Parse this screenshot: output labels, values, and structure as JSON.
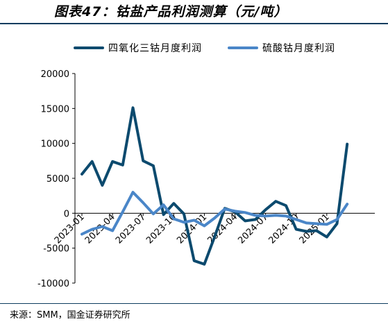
{
  "title": "图表47：钴盐产品利润测算（元/吨）",
  "source": "来源：SMM，国金证券研究所",
  "colors": {
    "series1": "#0c4a6e",
    "series2": "#4a86c8",
    "axis": "#000000",
    "rule": "#0c3c5e"
  },
  "chart_data": {
    "type": "line",
    "x_labels": [
      "2023-01",
      "2023-04",
      "2023-07",
      "2023-10",
      "2024-01",
      "2024-04",
      "2024-07",
      "2024-10",
      "2025-01"
    ],
    "ylim": [
      -10000,
      20000
    ],
    "yticks": [
      20000,
      15000,
      10000,
      5000,
      0,
      -5000,
      -10000
    ],
    "legend_position": "top",
    "grid": false,
    "series": [
      {
        "name": "四氧化三钴月度利润",
        "color": "#0c4a6e",
        "values": [
          5600,
          7400,
          4000,
          7400,
          6900,
          15100,
          7500,
          6800,
          -200,
          1400,
          -100,
          -6800,
          -7300,
          -3400,
          700,
          200,
          -1100,
          -900,
          500,
          1700,
          1100,
          -2300,
          -2600,
          -2500,
          -3400,
          -1500,
          9900
        ]
      },
      {
        "name": "硫酸钴月度利润",
        "color": "#4a86c8",
        "values": [
          -3000,
          -2300,
          -1900,
          -2500,
          200,
          3000,
          1500,
          -100,
          1200,
          -800,
          -1300,
          -1000,
          -1800,
          -700,
          600,
          300,
          100,
          -300,
          -400,
          -300,
          -400,
          -900,
          -1400,
          -1500,
          -1600,
          -900,
          1300
        ]
      }
    ]
  }
}
